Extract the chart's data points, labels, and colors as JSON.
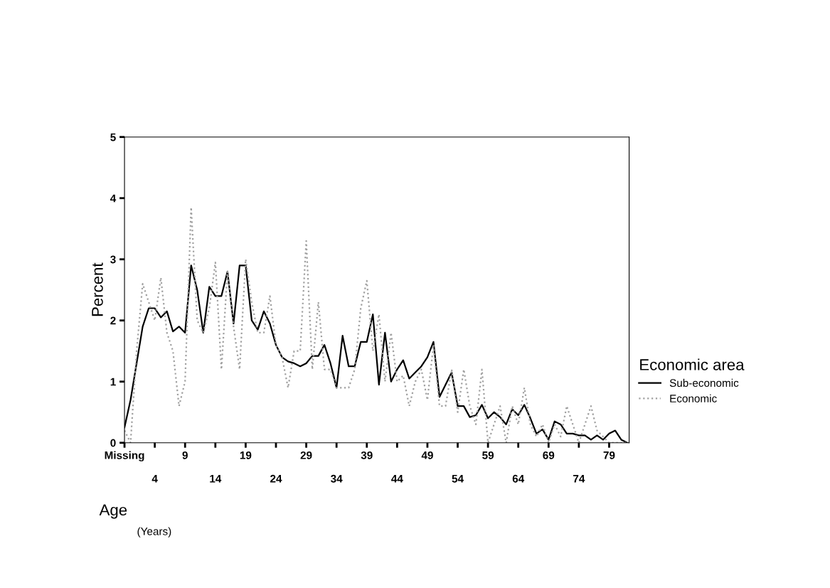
{
  "chart_data": {
    "type": "line",
    "xlabel": "Age",
    "ylabel": "Percent",
    "legend_title": "Economic area",
    "annotations": [
      "(Years)"
    ],
    "categories": [
      "Missing",
      null,
      null,
      null,
      null,
      "4",
      null,
      null,
      null,
      null,
      "9",
      null,
      null,
      null,
      null,
      "14",
      null,
      null,
      null,
      null,
      "19",
      null,
      null,
      null,
      null,
      "24",
      null,
      null,
      null,
      null,
      "29",
      null,
      null,
      null,
      null,
      "34",
      null,
      null,
      null,
      null,
      "39",
      null,
      null,
      null,
      null,
      "44",
      null,
      null,
      null,
      null,
      "49",
      null,
      null,
      null,
      null,
      "54",
      null,
      null,
      null,
      null,
      "59",
      null,
      null,
      null,
      null,
      "64",
      null,
      null,
      null,
      null,
      "69",
      null,
      null,
      null,
      null,
      "74",
      null,
      null,
      null,
      null,
      "79",
      null,
      null,
      null
    ],
    "series": [
      {
        "name": "Sub-economic",
        "color": "#000000",
        "line_style": "solid",
        "values": [
          0.25,
          0.7,
          1.3,
          1.9,
          2.2,
          2.2,
          2.05,
          2.15,
          1.82,
          1.9,
          1.8,
          2.9,
          2.5,
          1.8,
          2.55,
          2.4,
          2.4,
          2.8,
          1.95,
          2.9,
          2.9,
          2.0,
          1.85,
          2.15,
          1.95,
          1.6,
          1.4,
          1.33,
          1.3,
          1.25,
          1.3,
          1.42,
          1.42,
          1.6,
          1.3,
          0.9,
          1.75,
          1.25,
          1.25,
          1.65,
          1.65,
          2.1,
          0.95,
          1.8,
          1.0,
          1.2,
          1.35,
          1.05,
          1.15,
          1.25,
          1.4,
          1.65,
          0.75,
          0.95,
          1.15,
          0.6,
          0.6,
          0.42,
          0.45,
          0.62,
          0.4,
          0.5,
          0.42,
          0.3,
          0.55,
          0.45,
          0.62,
          0.4,
          0.15,
          0.22,
          0.05,
          0.35,
          0.3,
          0.15,
          0.15,
          0.12,
          0.12,
          0.05,
          0.12,
          0.05,
          0.15,
          0.2,
          0.05,
          0.0
        ]
      },
      {
        "name": "Economic",
        "color": "#a0a0a0",
        "line_style": "dotted",
        "values": [
          0.2,
          0.0,
          1.5,
          2.6,
          2.3,
          2.0,
          2.7,
          1.8,
          1.5,
          0.6,
          1.0,
          3.85,
          2.0,
          1.8,
          2.2,
          2.95,
          1.2,
          2.8,
          1.9,
          1.2,
          3.0,
          2.3,
          1.8,
          1.8,
          2.4,
          1.6,
          1.4,
          0.9,
          1.5,
          1.5,
          3.3,
          1.2,
          2.3,
          1.2,
          1.2,
          0.9,
          0.9,
          0.9,
          1.2,
          2.2,
          2.65,
          1.5,
          2.1,
          1.0,
          1.8,
          1.0,
          1.1,
          0.6,
          1.0,
          1.2,
          0.7,
          1.6,
          0.6,
          0.6,
          1.2,
          0.5,
          1.2,
          0.6,
          0.3,
          1.2,
          0.0,
          0.3,
          0.6,
          0.0,
          0.6,
          0.3,
          0.9,
          0.3,
          0.1,
          0.3,
          0.0,
          0.3,
          0.1,
          0.6,
          0.3,
          0.0,
          0.3,
          0.6,
          0.2,
          0.1,
          0.0,
          0.0,
          0.0,
          0.0
        ]
      }
    ],
    "ylim": [
      0,
      5
    ],
    "yticks": [
      0,
      1,
      2,
      3,
      4,
      5
    ],
    "grid": false,
    "legend": "right",
    "marker": "none"
  }
}
